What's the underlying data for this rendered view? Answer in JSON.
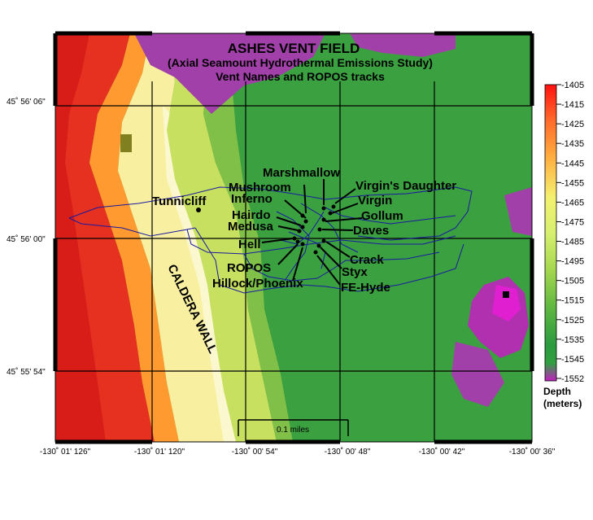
{
  "map": {
    "title": "ASHES VENT FIELD",
    "subtitle": "(Axial Seamount Hydrothermal Emissions Study)",
    "subtitle2": "Vent Names and ROPOS tracks",
    "feature_label": "CALDERA WALL",
    "scale_label": "0.1 miles",
    "latitude_labels": [
      "45˚ 56' 06\"",
      "45˚ 56' 00\"",
      "45˚ 55' 54\""
    ],
    "longitude_labels": [
      "-130˚ 01' 126\"",
      "-130˚ 01' 120\"",
      "-130˚ 00' 54\"",
      "-130˚ 00' 48\"",
      "-130˚ 00' 42\"",
      "-130˚ 00' 36\""
    ],
    "vents": [
      {
        "name": "Marshmallow"
      },
      {
        "name": "Virgin's Daughter"
      },
      {
        "name": "Mushroom"
      },
      {
        "name": "Virgin"
      },
      {
        "name": "Inferno"
      },
      {
        "name": "Tunnicliff"
      },
      {
        "name": "Gollum"
      },
      {
        "name": "Hairdo"
      },
      {
        "name": "Medusa"
      },
      {
        "name": "Daves"
      },
      {
        "name": "Hell"
      },
      {
        "name": "Crack"
      },
      {
        "name": "ROPOS"
      },
      {
        "name": "Styx"
      },
      {
        "name": "Hillock/Phoenix"
      },
      {
        "name": "FE-Hyde"
      }
    ]
  },
  "legend": {
    "title_line1": "Depth",
    "title_line2": "(meters)",
    "ticks": [
      "-1405",
      "-1415",
      "-1425",
      "-1435",
      "-1445",
      "-1455",
      "-1465",
      "-1475",
      "-1485",
      "-1495",
      "-1505",
      "-1515",
      "-1525",
      "-1535",
      "-1545",
      "-1552"
    ],
    "colors": [
      "#ff1a1a",
      "#ff5a2a",
      "#ff8c3a",
      "#ffb040",
      "#ffd060",
      "#f0f080",
      "#e0f070",
      "#c8e860",
      "#a8d850",
      "#88c848",
      "#60b840",
      "#40a840",
      "#30a040",
      "#2a9a40",
      "#a040a0",
      "#b020c0"
    ]
  }
}
